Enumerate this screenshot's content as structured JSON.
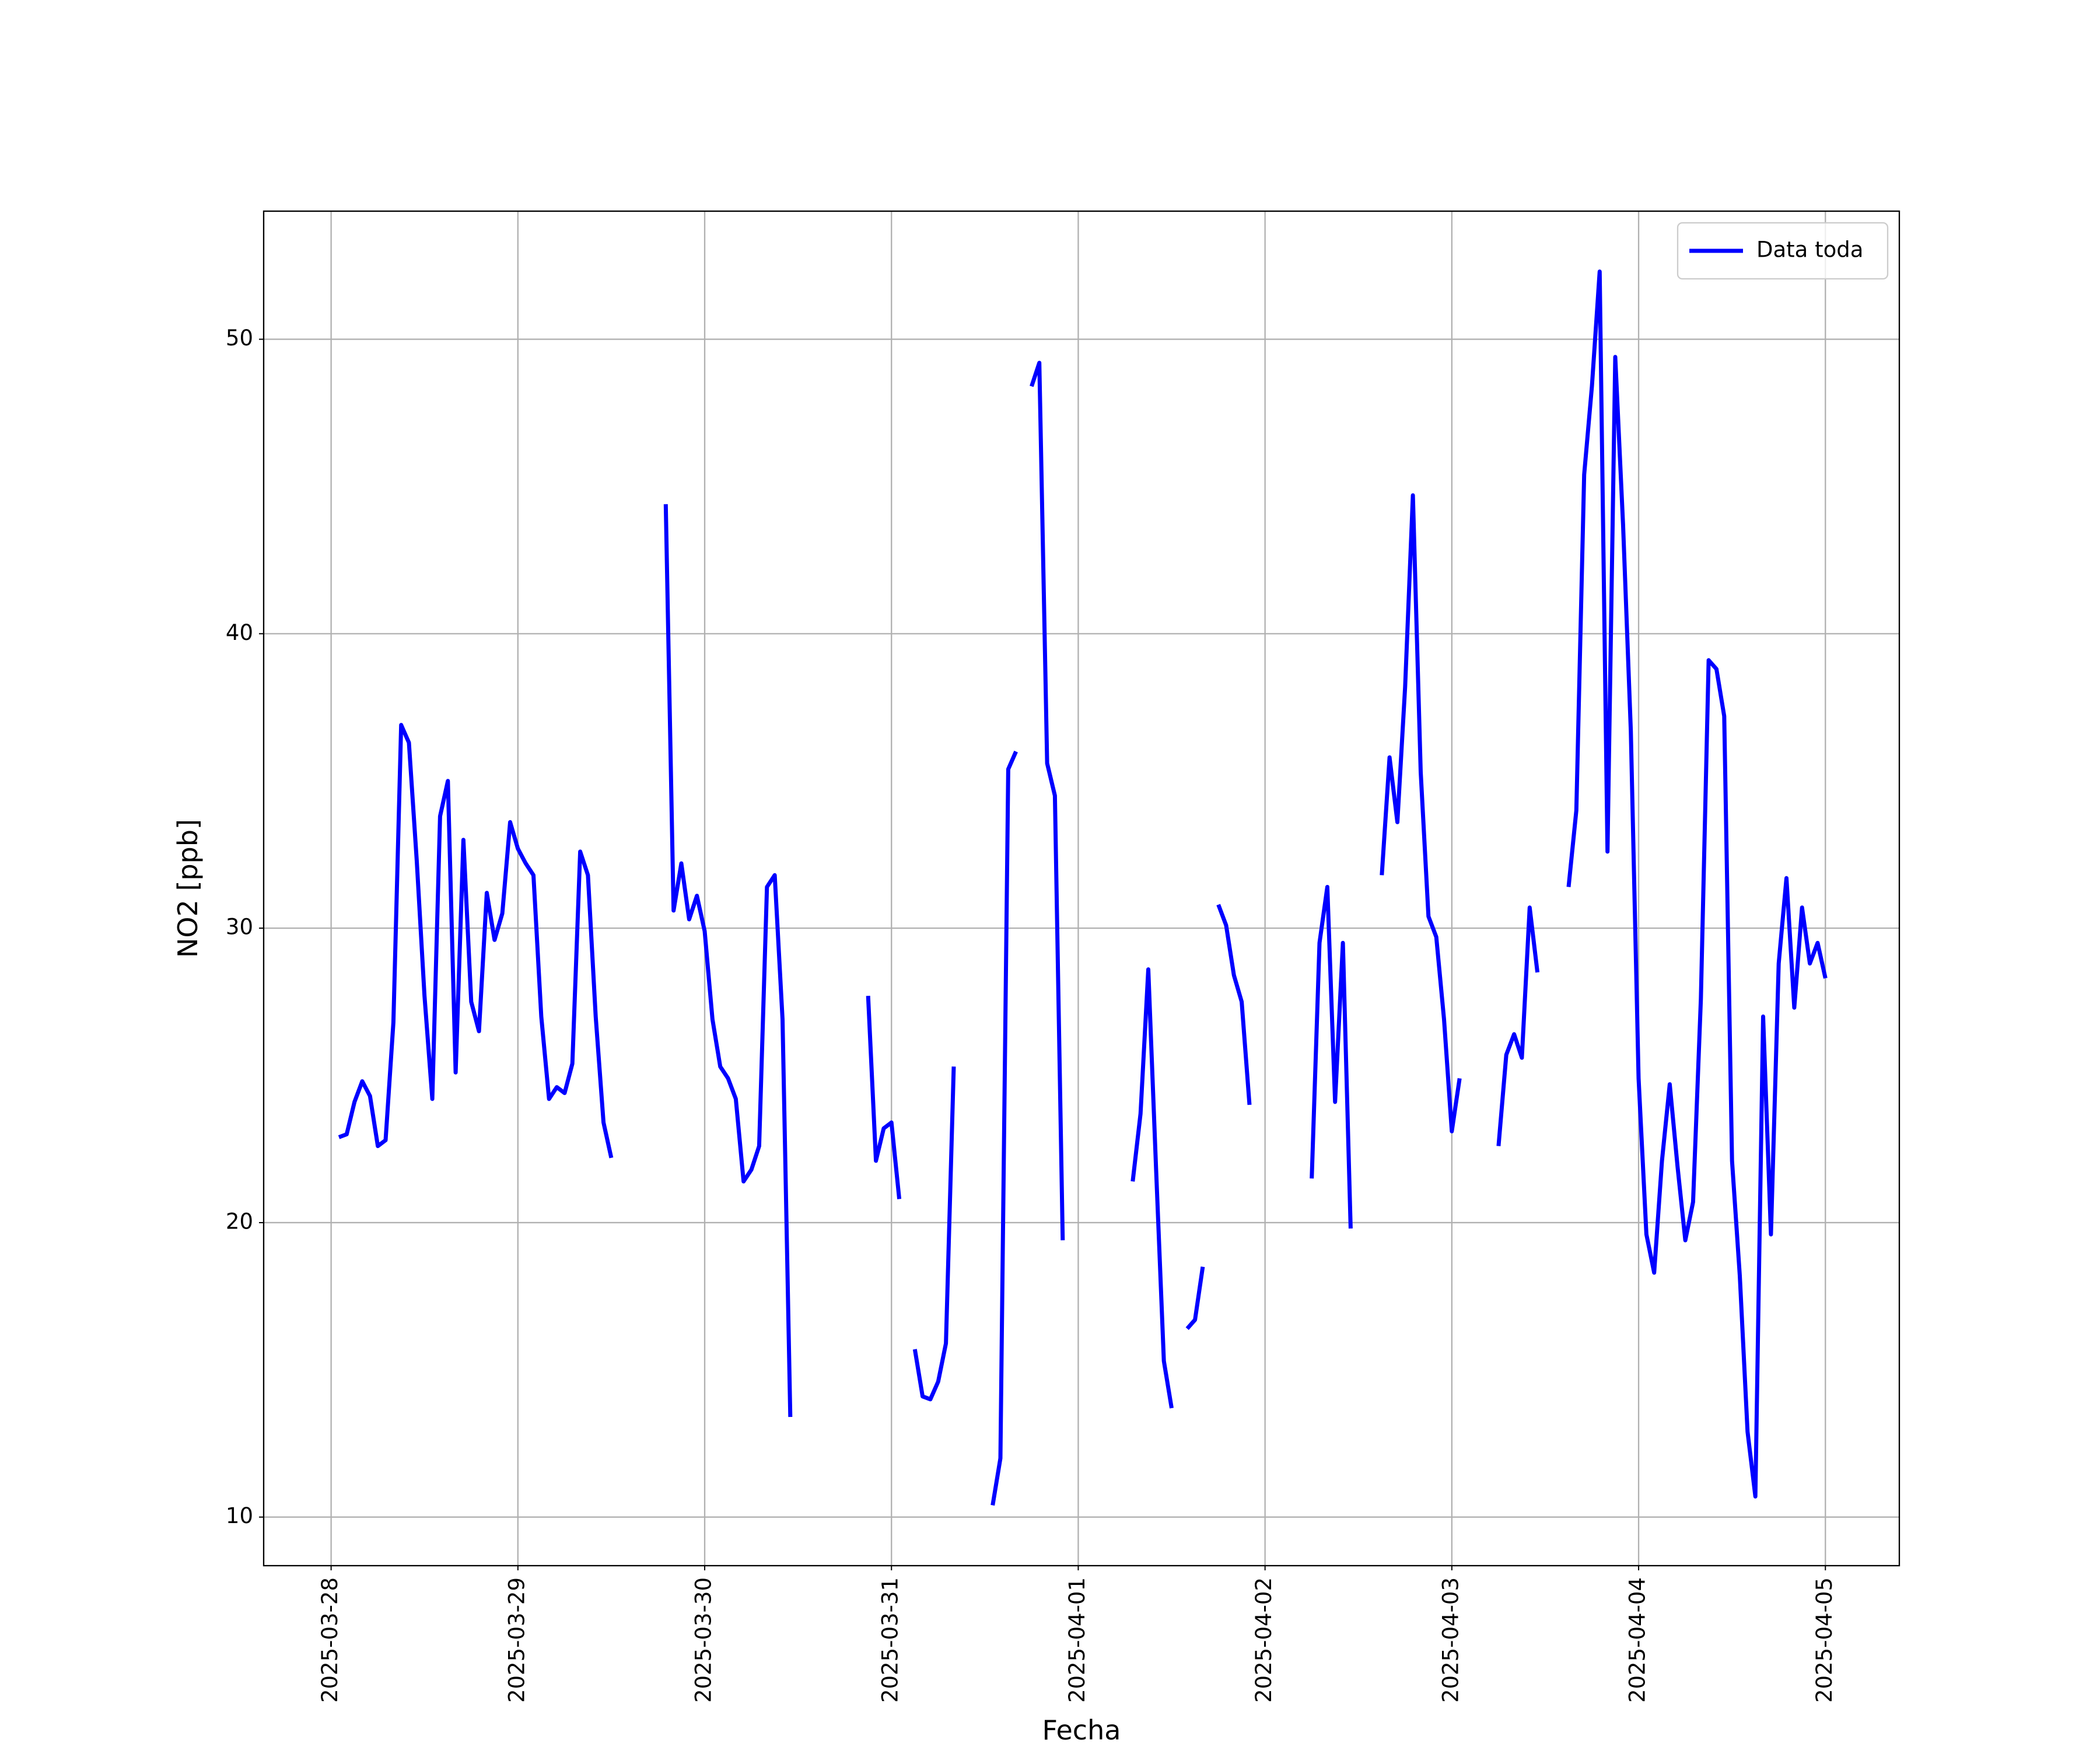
{
  "chart_data": {
    "type": "line",
    "xlabel": "Fecha",
    "ylabel": "NO2 [ppb]",
    "x": [
      "2025-03-28 01:00",
      "2025-03-28 02:00",
      "2025-03-28 03:00",
      "2025-03-28 04:00",
      "2025-03-28 05:00",
      "2025-03-28 06:00",
      "2025-03-28 07:00",
      "2025-03-28 08:00",
      "2025-03-28 09:00",
      "2025-03-28 10:00",
      "2025-03-28 11:00",
      "2025-03-28 12:00",
      "2025-03-28 13:00",
      "2025-03-28 14:00",
      "2025-03-28 15:00",
      "2025-03-28 16:00",
      "2025-03-28 17:00",
      "2025-03-28 18:00",
      "2025-03-28 19:00",
      "2025-03-28 20:00",
      "2025-03-28 21:00",
      "2025-03-28 22:00",
      "2025-03-28 23:00",
      "2025-03-29 00:00",
      "2025-03-29 01:00",
      "2025-03-29 02:00",
      "2025-03-29 03:00",
      "2025-03-29 04:00",
      "2025-03-29 05:00",
      "2025-03-29 06:00",
      "2025-03-29 07:00",
      "2025-03-29 08:00",
      "2025-03-29 09:00",
      "2025-03-29 10:00",
      "2025-03-29 11:00",
      "2025-03-29 12:00",
      "2025-03-29 13:00",
      "2025-03-29 14:00",
      "2025-03-29 15:00",
      "2025-03-29 16:00",
      "2025-03-29 17:00",
      "2025-03-29 18:00",
      "2025-03-29 19:00",
      "2025-03-29 20:00",
      "2025-03-29 21:00",
      "2025-03-29 22:00",
      "2025-03-29 23:00",
      "2025-03-30 00:00",
      "2025-03-30 01:00",
      "2025-03-30 02:00",
      "2025-03-30 03:00",
      "2025-03-30 04:00",
      "2025-03-30 05:00",
      "2025-03-30 06:00",
      "2025-03-30 07:00",
      "2025-03-30 08:00",
      "2025-03-30 09:00",
      "2025-03-30 10:00",
      "2025-03-30 11:00",
      "2025-03-30 12:00",
      "2025-03-30 13:00",
      "2025-03-30 14:00",
      "2025-03-30 15:00",
      "2025-03-30 16:00",
      "2025-03-30 17:00",
      "2025-03-30 18:00",
      "2025-03-30 19:00",
      "2025-03-30 20:00",
      "2025-03-30 21:00",
      "2025-03-30 22:00",
      "2025-03-30 23:00",
      "2025-03-31 00:00",
      "2025-03-31 01:00",
      "2025-03-31 02:00",
      "2025-03-31 03:00",
      "2025-03-31 04:00",
      "2025-03-31 05:00",
      "2025-03-31 06:00",
      "2025-03-31 07:00",
      "2025-03-31 08:00",
      "2025-03-31 09:00",
      "2025-03-31 10:00",
      "2025-03-31 11:00",
      "2025-03-31 12:00",
      "2025-03-31 13:00",
      "2025-03-31 14:00",
      "2025-03-31 15:00",
      "2025-03-31 16:00",
      "2025-03-31 17:00",
      "2025-03-31 18:00",
      "2025-03-31 19:00",
      "2025-03-31 20:00",
      "2025-03-31 21:00",
      "2025-03-31 22:00",
      "2025-03-31 23:00",
      "2025-04-01 00:00",
      "2025-04-01 01:00",
      "2025-04-01 02:00",
      "2025-04-01 03:00",
      "2025-04-01 04:00",
      "2025-04-01 05:00",
      "2025-04-01 06:00",
      "2025-04-01 07:00",
      "2025-04-01 08:00",
      "2025-04-01 09:00",
      "2025-04-01 10:00",
      "2025-04-01 11:00",
      "2025-04-01 12:00",
      "2025-04-01 13:00",
      "2025-04-01 14:00",
      "2025-04-01 15:00",
      "2025-04-01 16:00",
      "2025-04-01 17:00",
      "2025-04-01 18:00",
      "2025-04-01 19:00",
      "2025-04-01 20:00",
      "2025-04-01 21:00",
      "2025-04-01 22:00",
      "2025-04-01 23:00",
      "2025-04-02 00:00",
      "2025-04-02 01:00",
      "2025-04-02 02:00",
      "2025-04-02 03:00",
      "2025-04-02 04:00",
      "2025-04-02 05:00",
      "2025-04-02 06:00",
      "2025-04-02 07:00",
      "2025-04-02 08:00",
      "2025-04-02 09:00",
      "2025-04-02 10:00",
      "2025-04-02 11:00",
      "2025-04-02 12:00",
      "2025-04-02 13:00",
      "2025-04-02 14:00",
      "2025-04-02 15:00",
      "2025-04-02 16:00",
      "2025-04-02 17:00",
      "2025-04-02 18:00",
      "2025-04-02 19:00",
      "2025-04-02 20:00",
      "2025-04-02 21:00",
      "2025-04-02 22:00",
      "2025-04-02 23:00",
      "2025-04-03 00:00",
      "2025-04-03 01:00",
      "2025-04-03 02:00",
      "2025-04-03 03:00",
      "2025-04-03 04:00",
      "2025-04-03 05:00",
      "2025-04-03 06:00",
      "2025-04-03 07:00",
      "2025-04-03 08:00",
      "2025-04-03 09:00",
      "2025-04-03 10:00",
      "2025-04-03 11:00",
      "2025-04-03 12:00",
      "2025-04-03 13:00",
      "2025-04-03 14:00",
      "2025-04-03 15:00",
      "2025-04-03 16:00",
      "2025-04-03 17:00",
      "2025-04-03 18:00",
      "2025-04-03 19:00",
      "2025-04-03 20:00",
      "2025-04-03 21:00",
      "2025-04-03 22:00",
      "2025-04-03 23:00",
      "2025-04-04 00:00",
      "2025-04-04 01:00",
      "2025-04-04 02:00",
      "2025-04-04 03:00",
      "2025-04-04 04:00",
      "2025-04-04 05:00",
      "2025-04-04 06:00",
      "2025-04-04 07:00",
      "2025-04-04 08:00",
      "2025-04-04 09:00",
      "2025-04-04 10:00",
      "2025-04-04 11:00",
      "2025-04-04 12:00",
      "2025-04-04 13:00",
      "2025-04-04 14:00",
      "2025-04-04 15:00",
      "2025-04-04 16:00",
      "2025-04-04 17:00",
      "2025-04-04 18:00",
      "2025-04-04 19:00",
      "2025-04-04 20:00",
      "2025-04-04 21:00",
      "2025-04-04 22:00",
      "2025-04-04 23:00",
      "2025-04-05 00:00"
    ],
    "series": [
      {
        "name": "Data toda",
        "color": "#0000ff",
        "values": [
          22.9,
          23.0,
          24.1,
          24.8,
          24.3,
          22.6,
          22.8,
          26.8,
          36.9,
          36.3,
          32.3,
          27.7,
          24.2,
          33.8,
          35.0,
          25.1,
          33.0,
          27.5,
          26.5,
          31.2,
          29.6,
          30.5,
          33.6,
          32.7,
          32.2,
          31.8,
          27.0,
          24.2,
          24.6,
          24.4,
          25.4,
          32.6,
          31.8,
          27.0,
          23.4,
          22.2,
          null,
          null,
          null,
          null,
          null,
          null,
          44.4,
          30.6,
          32.2,
          30.3,
          31.1,
          29.9,
          26.9,
          25.3,
          24.9,
          24.2,
          21.4,
          21.8,
          22.6,
          31.4,
          31.8,
          26.9,
          13.4,
          null,
          null,
          null,
          null,
          null,
          null,
          null,
          null,
          null,
          27.7,
          22.1,
          23.2,
          23.4,
          20.8,
          null,
          15.7,
          14.1,
          14.0,
          14.6,
          15.9,
          25.3,
          null,
          null,
          null,
          null,
          10.4,
          12.0,
          35.4,
          36.0,
          null,
          48.4,
          49.2,
          35.6,
          34.5,
          19.4,
          null,
          null,
          null,
          null,
          null,
          null,
          null,
          null,
          21.4,
          23.7,
          28.6,
          21.8,
          15.3,
          13.7,
          null,
          16.4,
          16.7,
          18.5,
          null,
          30.8,
          30.1,
          28.4,
          27.5,
          24.0,
          null,
          null,
          null,
          null,
          null,
          null,
          null,
          21.5,
          29.5,
          31.4,
          24.1,
          29.5,
          19.8,
          null,
          null,
          null,
          31.8,
          35.8,
          33.6,
          38.2,
          44.7,
          35.3,
          30.4,
          29.7,
          26.9,
          23.1,
          24.9,
          null,
          null,
          null,
          null,
          22.6,
          25.7,
          26.4,
          25.6,
          30.7,
          28.5,
          null,
          null,
          null,
          31.4,
          34.0,
          45.4,
          48.4,
          52.3,
          32.6,
          49.4,
          43.7,
          36.7,
          24.9,
          19.6,
          18.3,
          22.1,
          24.7,
          21.9,
          19.4,
          20.7,
          27.6,
          39.1,
          38.8,
          37.2,
          22.1,
          18.2,
          12.9,
          10.7,
          27.0,
          19.6,
          28.8,
          31.7,
          27.3,
          30.7,
          28.8,
          29.5,
          28.3
        ]
      }
    ],
    "xlim": [
      "2025-03-27 15:20",
      "2025-04-05 09:30"
    ],
    "xticks": [
      "2025-03-28",
      "2025-03-29",
      "2025-03-30",
      "2025-03-31",
      "2025-04-01",
      "2025-04-02",
      "2025-04-03",
      "2025-04-04",
      "2025-04-05"
    ],
    "ylim": [
      8.35,
      54.35
    ],
    "yticks": [
      10,
      20,
      30,
      40,
      50
    ],
    "grid": true,
    "legend": "upper right"
  }
}
